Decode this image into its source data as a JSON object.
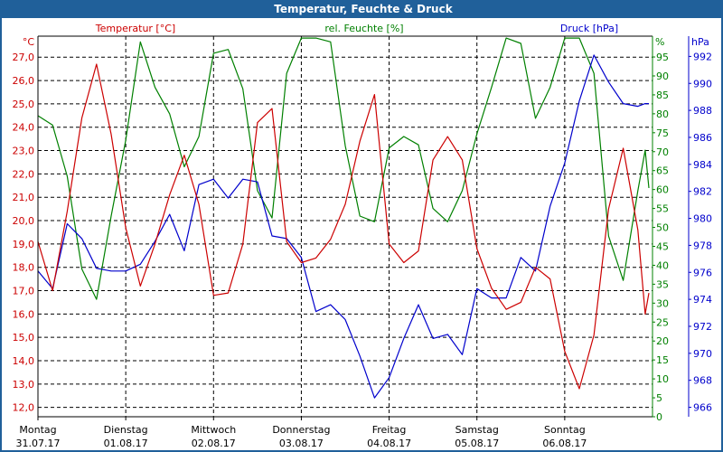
{
  "window": {
    "title": "Temperatur, Feuchte & Druck"
  },
  "chart_data": {
    "type": "line",
    "title": "Temperatur, Feuchte & Druck",
    "colors": {
      "temperature": "#cc0000",
      "humidity": "#008000",
      "pressure": "#0000cc",
      "title_bar": "#20609a"
    },
    "grid": true,
    "axes": {
      "temperature": {
        "label": "Temperatur [°C]",
        "unit": "°C",
        "side": "left",
        "ylim": [
          11.6,
          27.9
        ],
        "ticks": [
          "12,0",
          "13,0",
          "14,0",
          "15,0",
          "16,0",
          "17,0",
          "18,0",
          "19,0",
          "20,0",
          "21,0",
          "22,0",
          "23,0",
          "24,0",
          "25,0",
          "26,0",
          "27,0"
        ]
      },
      "humidity": {
        "label": "rel. Feuchte [%]",
        "unit": "%",
        "side": "right",
        "ylim": [
          0,
          100.5
        ],
        "ticks": [
          "0",
          "5",
          "10",
          "15",
          "20",
          "25",
          "30",
          "35",
          "40",
          "45",
          "50",
          "55",
          "60",
          "65",
          "70",
          "75",
          "80",
          "85",
          "90",
          "95"
        ]
      },
      "pressure": {
        "label": "Druck [hPa]",
        "unit": "hPa",
        "side": "right",
        "ylim": [
          965.3,
          993.5
        ],
        "ticks": [
          "966",
          "968",
          "970",
          "972",
          "974",
          "976",
          "978",
          "980",
          "982",
          "984",
          "986",
          "988",
          "990",
          "992"
        ]
      }
    },
    "x_axis": {
      "range": [
        "2017-07-31 00:00",
        "2017-08-07 00:00"
      ],
      "days": [
        {
          "day": "Montag",
          "date": "31.07.17"
        },
        {
          "day": "Dienstag",
          "date": "01.08.17"
        },
        {
          "day": "Mittwoch",
          "date": "02.08.17"
        },
        {
          "day": "Donnerstag",
          "date": "03.08.17"
        },
        {
          "day": "Freitag",
          "date": "04.08.17"
        },
        {
          "day": "Samstag",
          "date": "05.08.17"
        },
        {
          "day": "Sonntag",
          "date": "06.08.17"
        }
      ]
    },
    "x": [
      "2017-07-31 00:00",
      "2017-07-31 04:00",
      "2017-07-31 08:00",
      "2017-07-31 12:00",
      "2017-07-31 16:00",
      "2017-07-31 20:00",
      "2017-08-01 00:00",
      "2017-08-01 04:00",
      "2017-08-01 08:00",
      "2017-08-01 12:00",
      "2017-08-01 16:00",
      "2017-08-01 20:00",
      "2017-08-02 00:00",
      "2017-08-02 04:00",
      "2017-08-02 08:00",
      "2017-08-02 12:00",
      "2017-08-02 16:00",
      "2017-08-02 20:00",
      "2017-08-03 00:00",
      "2017-08-03 04:00",
      "2017-08-03 08:00",
      "2017-08-03 12:00",
      "2017-08-03 16:00",
      "2017-08-03 20:00",
      "2017-08-04 00:00",
      "2017-08-04 04:00",
      "2017-08-04 08:00",
      "2017-08-04 12:00",
      "2017-08-04 16:00",
      "2017-08-04 20:00",
      "2017-08-05 00:00",
      "2017-08-05 04:00",
      "2017-08-05 08:00",
      "2017-08-05 12:00",
      "2017-08-05 16:00",
      "2017-08-05 20:00",
      "2017-08-06 00:00",
      "2017-08-06 04:00",
      "2017-08-06 08:00",
      "2017-08-06 12:00",
      "2017-08-06 16:00",
      "2017-08-06 20:00",
      "2017-08-06 22:00",
      "2017-08-06 23:00"
    ],
    "series": [
      {
        "name": "Temperatur [°C]",
        "axis": "temperature",
        "values": [
          19.1,
          17.0,
          20.4,
          24.4,
          26.7,
          23.7,
          19.7,
          17.2,
          19.0,
          21.1,
          22.8,
          20.7,
          16.8,
          16.9,
          19.0,
          24.2,
          24.8,
          19.1,
          18.2,
          18.4,
          19.2,
          20.7,
          23.4,
          25.4,
          19.0,
          18.2,
          18.7,
          22.6,
          23.6,
          22.6,
          18.8,
          17.1,
          16.2,
          16.5,
          18.0,
          17.5,
          14.4,
          12.8,
          15.1,
          20.5,
          23.1,
          19.6,
          16.0,
          16.9
        ]
      },
      {
        "name": "rel. Feuchte [%]",
        "axis": "humidity",
        "values": [
          79.5,
          77,
          63.5,
          39,
          31,
          53,
          73,
          99,
          87,
          80,
          66,
          74,
          96,
          97,
          86.6,
          59.7,
          52.5,
          90.7,
          100,
          100,
          99,
          71.6,
          53,
          51.5,
          71,
          74,
          71.8,
          55,
          51.5,
          59.7,
          74.7,
          87,
          100,
          98.6,
          78.8,
          87,
          100,
          100,
          90.7,
          47.7,
          36,
          59.7,
          70.4,
          60.4
        ]
      },
      {
        "name": "Druck [hPa]",
        "axis": "pressure",
        "values": [
          976.1,
          974.8,
          979.6,
          978.5,
          976.3,
          976.1,
          976.1,
          976.6,
          978.3,
          980.3,
          977.6,
          982.5,
          982.9,
          981.5,
          982.9,
          982.7,
          978.7,
          978.5,
          977.1,
          973.1,
          973.6,
          972.5,
          969.8,
          966.7,
          968.2,
          971.1,
          973.6,
          971.1,
          971.4,
          969.9,
          974.8,
          974.1,
          974.1,
          977.1,
          976.1,
          980.9,
          984.1,
          988.7,
          992.1,
          990.1,
          988.5,
          988.3,
          988.5,
          988.5
        ]
      }
    ]
  }
}
